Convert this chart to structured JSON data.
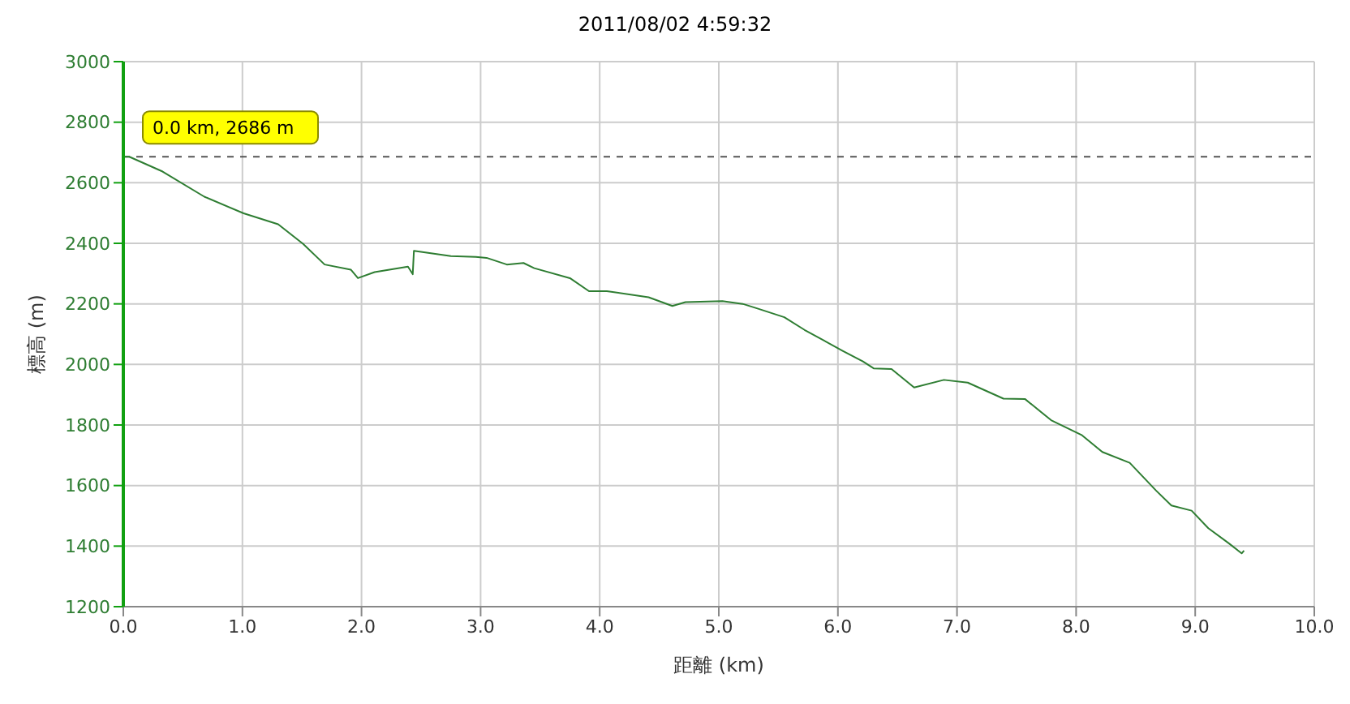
{
  "chart_data": {
    "type": "line",
    "title": "2011/08/02 4:59:32",
    "xlabel": "距離 (km)",
    "ylabel": "標高 (m)",
    "annotations": [
      {
        "text": "0.0 km, 2686 m",
        "x": 0,
        "y": 2686
      }
    ],
    "ref_lines": [
      {
        "axis": "y",
        "value": 2686,
        "color": "#555555",
        "line_style": "dashed"
      }
    ],
    "x": [
      0,
      0.05,
      0.33,
      0.68,
      1.01,
      1.3,
      1.51,
      1.69,
      1.91,
      1.97,
      2.11,
      2.39,
      2.43,
      2.44,
      2.75,
      2.96,
      3.05,
      3.22,
      3.36,
      3.45,
      3.75,
      3.91,
      4.06,
      4.41,
      4.61,
      4.72,
      5.03,
      5.2,
      5.33,
      5.55,
      5.72,
      6.04,
      6.21,
      6.3,
      6.45,
      6.64,
      6.89,
      7.09,
      7.39,
      7.57,
      7.79,
      8.05,
      8.22,
      8.45,
      8.67,
      8.8,
      8.97,
      9.11,
      9.28,
      9.39,
      9.41
    ],
    "series": [
      {
        "color": "#2e7d32",
        "values": [
          2686,
          2686,
          2637,
          2554,
          2499,
          2463,
          2398,
          2330,
          2313,
          2285,
          2305,
          2323,
          2298,
          2375,
          2358,
          2355,
          2352,
          2330,
          2335,
          2318,
          2285,
          2242,
          2242,
          2222,
          2193,
          2206,
          2209,
          2200,
          2184,
          2156,
          2114,
          2045,
          2010,
          1987,
          1985,
          1924,
          1949,
          1940,
          1887,
          1886,
          1816,
          1766,
          1711,
          1675,
          1584,
          1534,
          1517,
          1459,
          1410,
          1376,
          1385
        ]
      }
    ],
    "xlim": [
      0,
      10
    ],
    "ylim": [
      1200,
      3000
    ],
    "xticks": [
      {
        "value": 0,
        "label": "0.0"
      },
      {
        "value": 1,
        "label": "1.0"
      },
      {
        "value": 2,
        "label": "2.0"
      },
      {
        "value": 3,
        "label": "3.0"
      },
      {
        "value": 4,
        "label": "4.0"
      },
      {
        "value": 5,
        "label": "5.0"
      },
      {
        "value": 6,
        "label": "6.0"
      },
      {
        "value": 7,
        "label": "7.0"
      },
      {
        "value": 8,
        "label": "8.0"
      },
      {
        "value": 9,
        "label": "9.0"
      },
      {
        "value": 10,
        "label": "10.0"
      }
    ],
    "yticks": [
      1200,
      1400,
      1600,
      1800,
      2000,
      2200,
      2400,
      2600,
      2800,
      3000
    ],
    "grid": true,
    "marker": "none",
    "line_style": "solid"
  }
}
